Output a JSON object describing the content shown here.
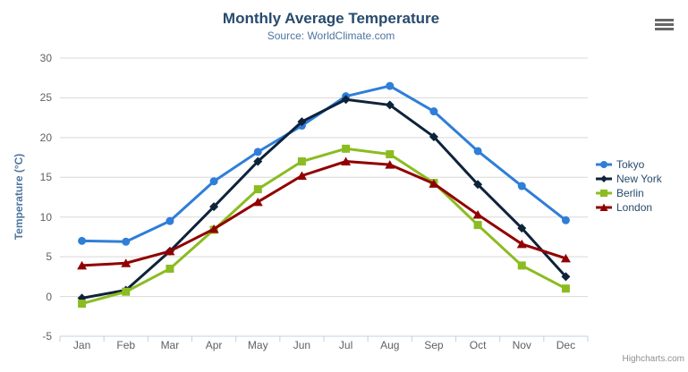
{
  "chart_data": {
    "type": "line",
    "title": "Monthly Average Temperature",
    "subtitle": "Source: WorldClimate.com",
    "xlabel": "",
    "ylabel": "Temperature (°C)",
    "ylim": [
      -5,
      30
    ],
    "yticks": [
      -5,
      0,
      5,
      10,
      15,
      20,
      25,
      30
    ],
    "grid": true,
    "legend_position": "right",
    "categories": [
      "Jan",
      "Feb",
      "Mar",
      "Apr",
      "May",
      "Jun",
      "Jul",
      "Aug",
      "Sep",
      "Oct",
      "Nov",
      "Dec"
    ],
    "series": [
      {
        "name": "Tokyo",
        "color": "#2f7ed8",
        "marker": "circle",
        "values": [
          7.0,
          6.9,
          9.5,
          14.5,
          18.2,
          21.5,
          25.2,
          26.5,
          23.3,
          18.3,
          13.9,
          9.6
        ]
      },
      {
        "name": "New York",
        "color": "#0d233a",
        "marker": "diamond",
        "values": [
          -0.2,
          0.8,
          5.7,
          11.3,
          17.0,
          22.0,
          24.8,
          24.1,
          20.1,
          14.1,
          8.6,
          2.5
        ]
      },
      {
        "name": "Berlin",
        "color": "#8bbc21",
        "marker": "square",
        "values": [
          -0.9,
          0.6,
          3.5,
          8.4,
          13.5,
          17.0,
          18.6,
          17.9,
          14.3,
          9.0,
          3.9,
          1.0
        ]
      },
      {
        "name": "London",
        "color": "#910000",
        "marker": "triangle",
        "values": [
          3.9,
          4.2,
          5.7,
          8.5,
          11.9,
          15.2,
          17.0,
          16.6,
          14.2,
          10.3,
          6.6,
          4.8
        ]
      }
    ]
  },
  "colors": {
    "title": "#274b6d",
    "subtitle": "#4d759e",
    "axis_title": "#4d759e",
    "tick_label": "#606060",
    "grid_line": "#d8d8d8",
    "axis_line": "#c0d0e0",
    "legend_text": "#274b6d",
    "credits_text": "#909090",
    "menu_icon": "#666666"
  },
  "export_menu": {
    "icon": "hamburger-icon"
  },
  "credits": {
    "label": "Highcharts.com"
  }
}
